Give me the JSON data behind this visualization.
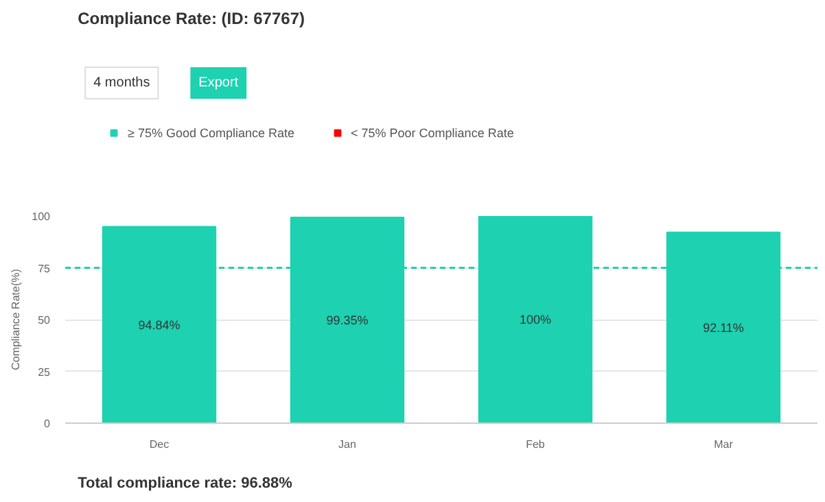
{
  "chart_data": {
    "type": "bar",
    "title": "Compliance Rate: (ID: 67767)",
    "ylabel": "Compliance Rate(%)",
    "categories": [
      "Dec",
      "Jan",
      "Feb",
      "Mar"
    ],
    "series": [
      {
        "name": "≥ 75% Good Compliance Rate",
        "color": "#1dd1b1",
        "values": [
          94.84,
          99.35,
          100,
          92.11
        ],
        "value_labels": [
          "94.84%",
          "99.35%",
          "100%",
          "92.11%"
        ]
      },
      {
        "name": "< 75% Poor Compliance Rate",
        "color": "#ff0000",
        "values": [
          null,
          null,
          null,
          null
        ]
      }
    ],
    "ylim": [
      0,
      100
    ],
    "yticks": [
      0,
      25,
      50,
      75,
      100
    ],
    "grid": "y",
    "legend": "top left",
    "ref_lines": [
      {
        "axis": "y",
        "value": 75,
        "color": "#1dd1b1",
        "line_style": "dashed"
      }
    ],
    "annotations": [
      "4 months",
      "Export",
      "Total compliance rate: 96.88%"
    ]
  }
}
